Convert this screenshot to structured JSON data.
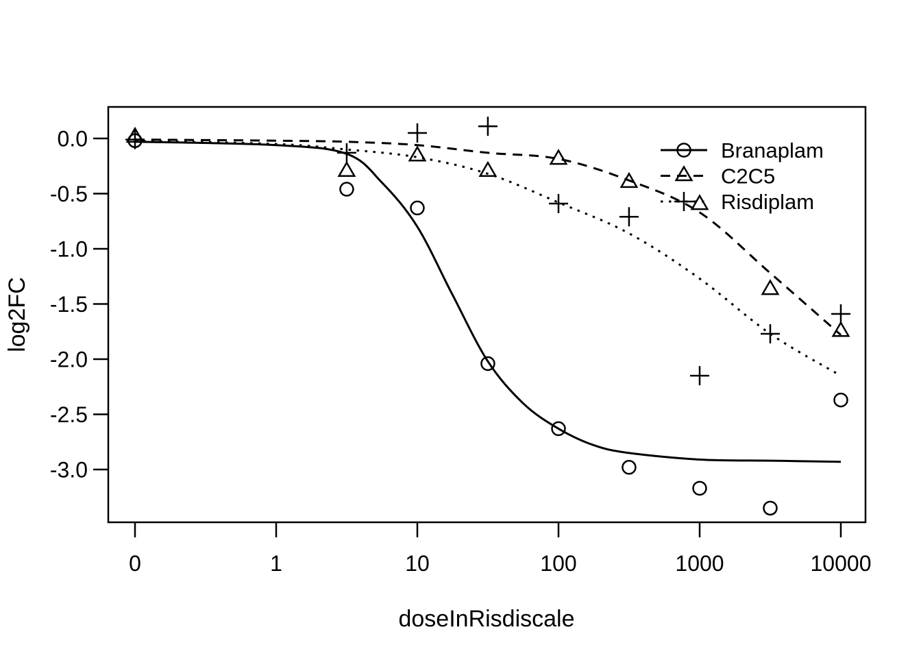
{
  "figure": {
    "background_color": "#ffffff",
    "foreground_color": "#000000"
  },
  "chart_data": {
    "type": "scatter",
    "title": "",
    "xlabel": "doseInRisdiscale",
    "ylabel": "log2FC",
    "x_scale": "log10-with-zero-dose-position",
    "grid": "off",
    "ylim": [
      -3.48,
      0.29
    ],
    "x_ticks": [
      {
        "value": 0,
        "label": "0"
      },
      {
        "value": 1,
        "label": "1"
      },
      {
        "value": 10,
        "label": "10"
      },
      {
        "value": 100,
        "label": "100"
      },
      {
        "value": 1000,
        "label": "1000"
      },
      {
        "value": 10000,
        "label": "10000"
      }
    ],
    "y_ticks": [
      {
        "value": 0.0,
        "label": "0.0"
      },
      {
        "value": -0.5,
        "label": "-0.5"
      },
      {
        "value": -1.0,
        "label": "-1.0"
      },
      {
        "value": -1.5,
        "label": "-1.5"
      },
      {
        "value": -2.0,
        "label": "-2.0"
      },
      {
        "value": -2.5,
        "label": "-2.5"
      },
      {
        "value": -3.0,
        "label": "-3.0"
      }
    ],
    "legend": {
      "position": "topright",
      "entries": [
        "Branaplam",
        "C2C5",
        "Risdiplam"
      ]
    },
    "series": [
      {
        "name": "Branaplam",
        "marker": "circle",
        "line": "solid",
        "color": "#000000",
        "points": [
          [
            0,
            -0.02
          ],
          [
            3.16,
            -0.46
          ],
          [
            10,
            -0.63
          ],
          [
            31.6,
            -2.04
          ],
          [
            100,
            -2.63
          ],
          [
            316,
            -2.98
          ],
          [
            1000,
            -3.17
          ],
          [
            3162,
            -3.35
          ],
          [
            10000,
            -2.37
          ]
        ],
        "fit_curve": [
          [
            0,
            -0.03
          ],
          [
            1,
            -0.06
          ],
          [
            3.16,
            -0.14
          ],
          [
            5.62,
            -0.4
          ],
          [
            10,
            -0.8
          ],
          [
            17.8,
            -1.42
          ],
          [
            31.6,
            -2.02
          ],
          [
            56.2,
            -2.4
          ],
          [
            100,
            -2.63
          ],
          [
            178,
            -2.78
          ],
          [
            316,
            -2.85
          ],
          [
            1000,
            -2.91
          ],
          [
            3162,
            -2.92
          ],
          [
            10000,
            -2.93
          ]
        ]
      },
      {
        "name": "C2C5",
        "marker": "triangle",
        "line": "dashed",
        "color": "#000000",
        "points": [
          [
            0,
            0.01
          ],
          [
            3.16,
            -0.3
          ],
          [
            10,
            -0.16
          ],
          [
            31.6,
            -0.3
          ],
          [
            100,
            -0.19
          ],
          [
            316,
            -0.4
          ],
          [
            1000,
            -0.6
          ],
          [
            3162,
            -1.37
          ],
          [
            10000,
            -1.75
          ]
        ],
        "fit_curve": [
          [
            0,
            -0.01
          ],
          [
            1,
            -0.02
          ],
          [
            3.16,
            -0.03
          ],
          [
            10,
            -0.06
          ],
          [
            31.6,
            -0.13
          ],
          [
            100,
            -0.185
          ],
          [
            316,
            -0.38
          ],
          [
            1000,
            -0.67
          ],
          [
            3162,
            -1.22
          ],
          [
            10000,
            -1.78
          ]
        ]
      },
      {
        "name": "Risdiplam",
        "marker": "plus",
        "line": "dotted",
        "color": "#000000",
        "points": [
          [
            0,
            -0.01
          ],
          [
            3.16,
            -0.13
          ],
          [
            10,
            0.05
          ],
          [
            31.6,
            0.11
          ],
          [
            100,
            -0.59
          ],
          [
            316,
            -0.71
          ],
          [
            1000,
            -2.15
          ],
          [
            3162,
            -1.77
          ],
          [
            10000,
            -1.59
          ]
        ],
        "fit_curve": [
          [
            0,
            -0.02
          ],
          [
            1,
            -0.05
          ],
          [
            3.16,
            -0.1
          ],
          [
            10,
            -0.17
          ],
          [
            31.6,
            -0.32
          ],
          [
            100,
            -0.58
          ],
          [
            316,
            -0.86
          ],
          [
            1000,
            -1.27
          ],
          [
            3162,
            -1.77
          ],
          [
            10000,
            -2.15
          ]
        ]
      }
    ]
  }
}
